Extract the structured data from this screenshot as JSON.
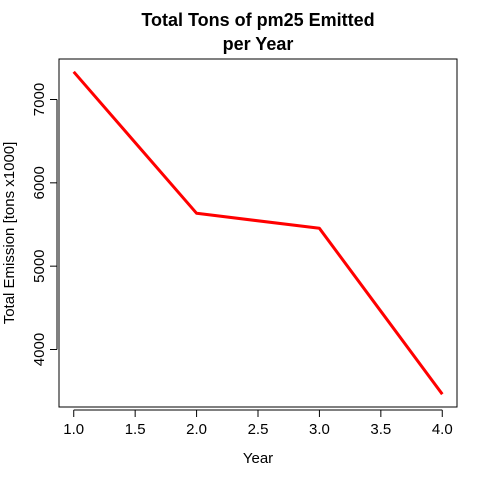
{
  "chart_data": {
    "type": "line",
    "title": "Total Tons of pm25 Emitted per Year",
    "title_lines": [
      "Total Tons of pm25 Emitted",
      "per Year"
    ],
    "xlabel": "Year",
    "ylabel": "Total Emission [tons x1000]",
    "x": [
      1.0,
      2.0,
      3.0,
      4.0
    ],
    "series": [
      {
        "values": [
          7332,
          5635,
          5455,
          3464
        ],
        "color": "#FF0000"
      }
    ],
    "x_ticks": [
      "1.0",
      "1.5",
      "2.0",
      "2.5",
      "3.0",
      "3.5",
      "4.0"
    ],
    "y_ticks": [
      "4000",
      "5000",
      "6000",
      "7000"
    ],
    "xlim": [
      0.88,
      4.12
    ],
    "ylim": [
      3310,
      7486
    ],
    "grid": false,
    "legend": "none"
  }
}
